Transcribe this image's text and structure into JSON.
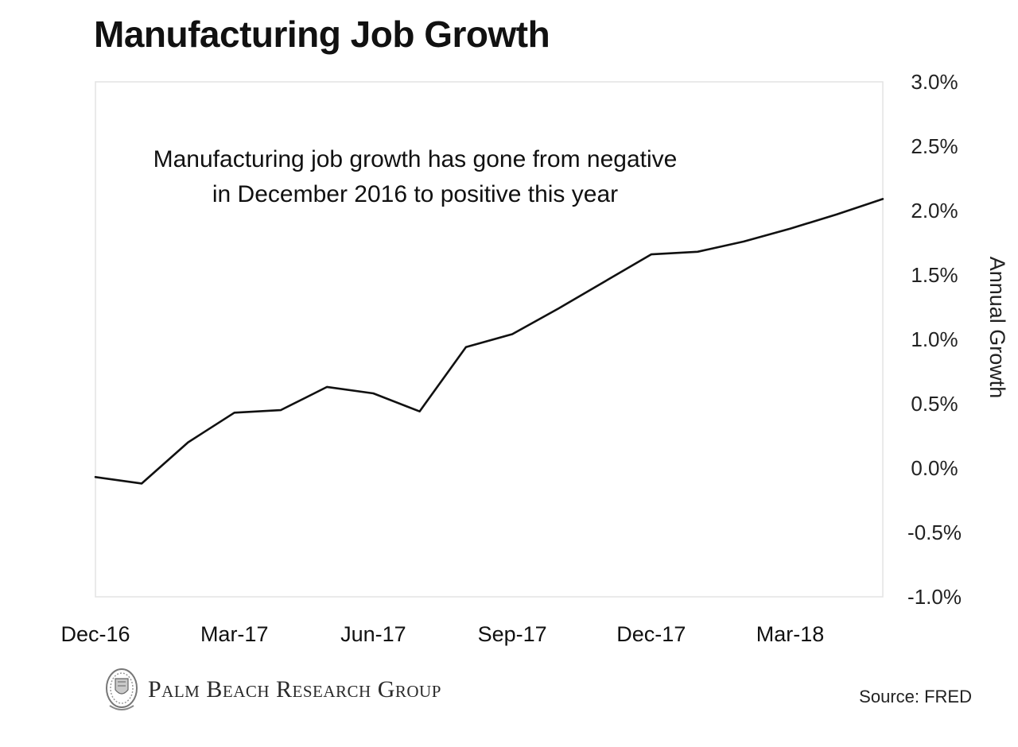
{
  "page": {
    "title": "Manufacturing Job Growth",
    "source": "Source: FRED",
    "logo_text": "Palm Beach Research Group",
    "logo_icon": "crest-seal-icon"
  },
  "chart_data": {
    "type": "line",
    "title": "Manufacturing Job Growth",
    "xlabel": "",
    "ylabel": "Annual Growth",
    "y_axis_side": "right",
    "ylim": [
      -1.0,
      3.0
    ],
    "y_ticks": [
      "3.0%",
      "2.5%",
      "2.0%",
      "1.5%",
      "1.0%",
      "0.5%",
      "0.0%",
      "-0.5%",
      "-1.0%"
    ],
    "x_ticks": [
      "Dec-16",
      "Mar-17",
      "Jun-17",
      "Sep-17",
      "Dec-17",
      "Mar-18"
    ],
    "grid": false,
    "annotation": [
      "Manufacturing job growth has gone from negative",
      "in December 2016 to positive this year"
    ],
    "series": [
      {
        "x": [
          "Dec-16",
          "Jan-17",
          "Feb-17",
          "Mar-17",
          "Apr-17",
          "May-17",
          "Jun-17",
          "Jul-17",
          "Aug-17",
          "Sep-17",
          "Oct-17",
          "Nov-17",
          "Dec-17",
          "Jan-18",
          "Feb-18",
          "Mar-18",
          "Apr-18",
          "May-18"
        ],
        "values": [
          -0.07,
          -0.12,
          0.2,
          0.43,
          0.45,
          0.63,
          0.58,
          0.44,
          0.94,
          1.04,
          1.24,
          1.45,
          1.66,
          1.68,
          1.76,
          1.86,
          1.97,
          2.09
        ],
        "color": "#111111"
      }
    ]
  }
}
